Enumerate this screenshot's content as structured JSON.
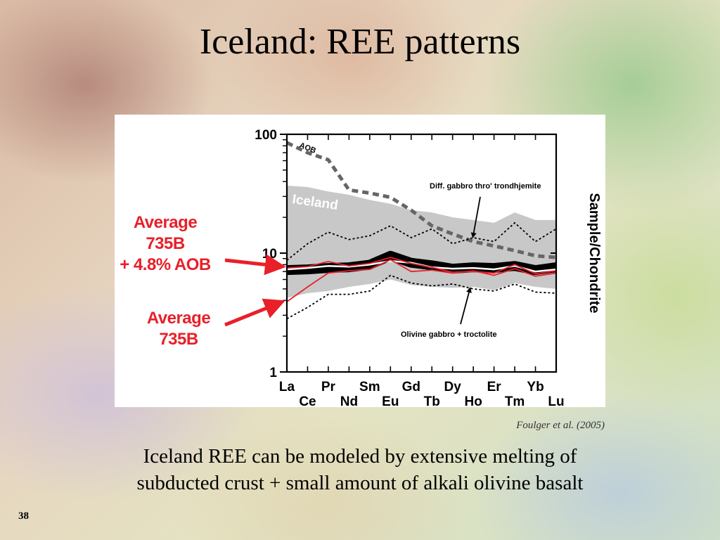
{
  "slide": {
    "title": "Iceland: REE patterns",
    "citation": "Foulger et al. (2005)",
    "caption_line1": "Iceland REE can be modeled by extensive melting of",
    "caption_line2": "subducted crust + small amount of alkali olivine basalt",
    "page_number": "38"
  },
  "labels": {
    "average_735b_aob": [
      "Average",
      "735B",
      "+ 4.8% AOB"
    ],
    "average_735b": [
      "Average",
      "735B"
    ]
  },
  "colors": {
    "red_accent": "#e8202a",
    "iceland_field": "#c8c8c8",
    "black": "#000000"
  },
  "chart_data": {
    "type": "line",
    "ylabel": "Sample/Chondrite",
    "yscale": "log",
    "ylim": [
      1,
      100
    ],
    "y_ticks": [
      "1",
      "10",
      "100"
    ],
    "x": [
      "La",
      "Ce",
      "Pr",
      "Nd",
      "Sm",
      "Eu",
      "Gd",
      "Tb",
      "Dy",
      "Ho",
      "Er",
      "Tm",
      "Yb",
      "Lu"
    ],
    "annotations": {
      "aob": "AOB",
      "iceland": "Iceland",
      "diff_gabbro": "Diff. gabbro thro' trondhjemite",
      "olivine_gabbro": "Olivine gabbro + troctolite"
    },
    "iceland_field": {
      "upper": [
        37,
        36,
        33,
        31,
        28,
        26,
        23,
        22,
        20,
        19,
        18,
        22,
        19,
        19
      ],
      "lower": [
        4.2,
        4.6,
        4.8,
        5.2,
        5.5,
        6.0,
        5.4,
        5.2,
        5.1,
        5.2,
        4.9,
        5.6,
        5.2,
        5.0
      ]
    },
    "series": [
      {
        "name": "AOB",
        "style": "gray-dashed",
        "values": [
          85,
          70,
          61,
          34,
          32,
          29.5,
          23,
          17,
          14.5,
          12.5,
          11.5,
          10.5,
          9.5,
          9.2
        ]
      },
      {
        "name": "Diff. gabbro thro' trondhjemite",
        "style": "black-dotted",
        "values": [
          8.7,
          12,
          15,
          13,
          14,
          17,
          13.5,
          16,
          12,
          13.5,
          12.5,
          18,
          12.5,
          16
        ]
      },
      {
        "name": "Olivine gabbro + troctolite",
        "style": "black-dotted",
        "values": [
          2.8,
          3.5,
          4.5,
          4.5,
          4.8,
          6.5,
          5.6,
          5.3,
          5.5,
          5.0,
          4.8,
          5.5,
          4.7,
          4.6
        ]
      },
      {
        "name": "Average 735B + 4.8% AOB",
        "style": "black-band",
        "values": [
          7.2,
          7.3,
          7.5,
          7.6,
          8.0,
          9.5,
          8.3,
          7.9,
          7.4,
          7.6,
          7.5,
          7.8,
          7.2,
          7.6
        ]
      },
      {
        "name": "Average 735B + 4.8% AOB",
        "style": "white-line",
        "values": [
          7.3,
          7.5,
          7.8,
          7.7,
          8.0,
          8.6,
          8.3,
          7.6,
          7.4,
          7.5,
          7.3,
          7.8,
          7.0,
          7.3
        ]
      },
      {
        "name": "Average 735B + 4.8% AOB",
        "style": "red-line",
        "values": [
          7.5,
          7.7,
          8.5,
          7.8,
          8.2,
          9.2,
          8.2,
          7.6,
          6.9,
          7.0,
          6.8,
          8.0,
          6.7,
          7.1
        ]
      },
      {
        "name": "Average 735B",
        "style": "red-line",
        "values": [
          3.9,
          5.2,
          6.8,
          7.1,
          7.3,
          8.8,
          7.0,
          7.2,
          6.8,
          7.1,
          6.5,
          7.4,
          6.4,
          6.8
        ]
      }
    ]
  }
}
